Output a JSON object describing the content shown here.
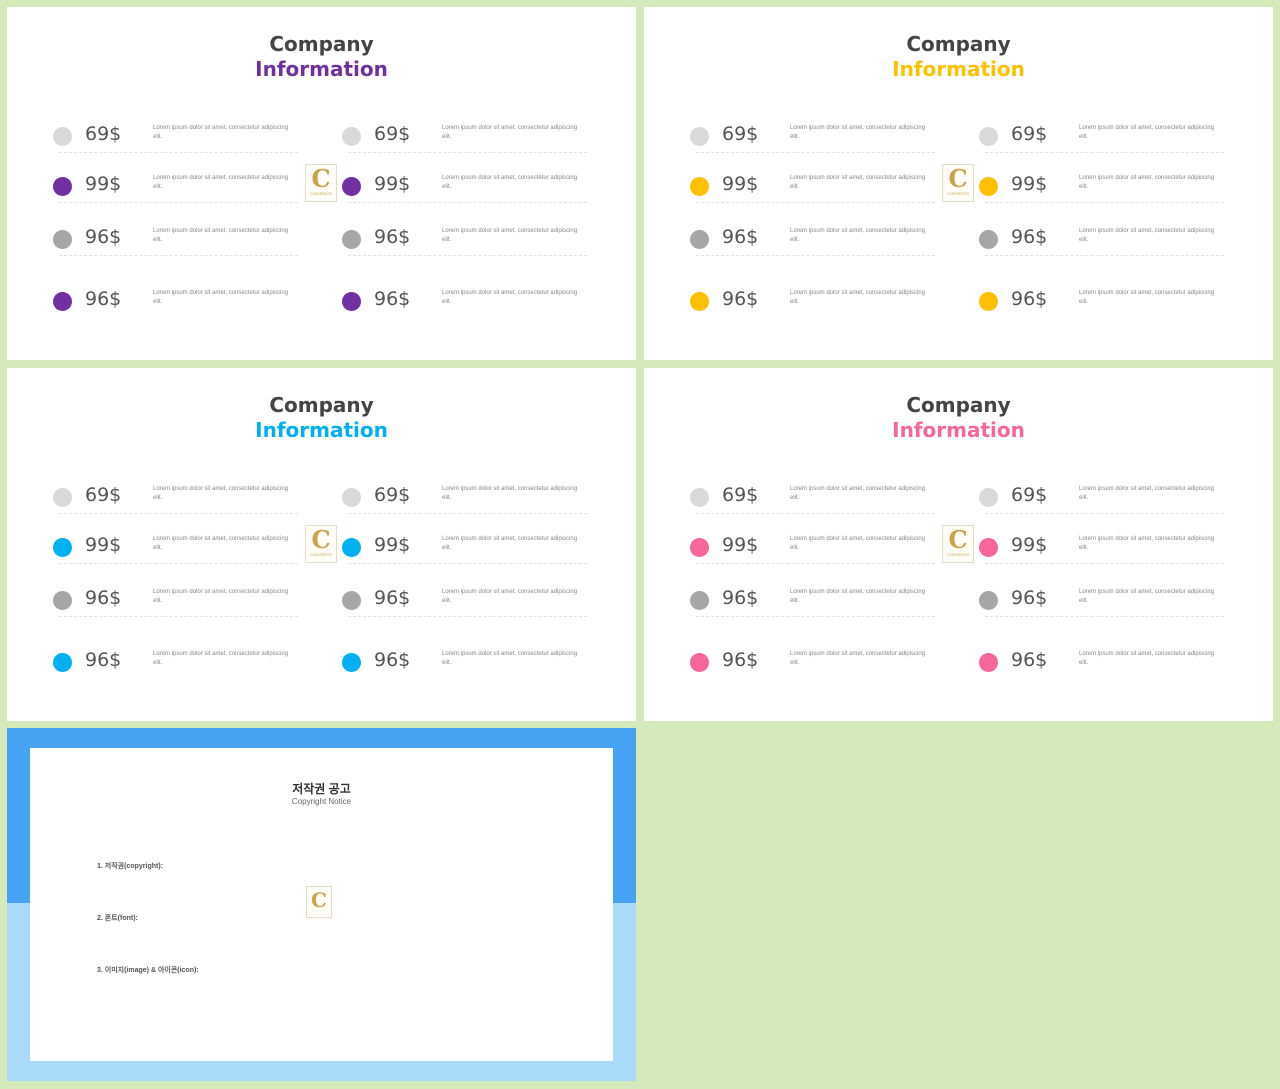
{
  "slides": [
    {
      "title_line1": "Company",
      "title_line2": "Information",
      "accent": "#7030a0",
      "left": [
        {
          "price": "69$",
          "dot": "#d9d9d9",
          "desc": "Lorem ipsum dolor sit amet, consectetur adipiscing elit."
        },
        {
          "price": "99$",
          "dot": "#7030a0",
          "desc": "Lorem ipsum dolor sit amet, consectetur adipiscing elit."
        },
        {
          "price": "96$",
          "dot": "#a6a6a6",
          "desc": "Lorem ipsum dolor sit amet, consectetur adipiscing elit."
        },
        {
          "price": "96$",
          "dot": "#7030a0",
          "desc": "Lorem ipsum dolor sit amet, consectetur adipiscing elit."
        }
      ],
      "right": [
        {
          "price": "69$",
          "dot": "#d9d9d9",
          "desc": "Lorem ipsum dolor sit amet, consectetur adipiscing elit."
        },
        {
          "price": "99$",
          "dot": "#7030a0",
          "desc": "Lorem ipsum dolor sit amet, consectetur adipiscing elit."
        },
        {
          "price": "96$",
          "dot": "#a6a6a6",
          "desc": "Lorem ipsum dolor sit amet, consectetur adipiscing elit."
        },
        {
          "price": "96$",
          "dot": "#7030a0",
          "desc": "Lorem ipsum dolor sit amet, consectetur adipiscing elit."
        }
      ]
    },
    {
      "title_line1": "Company",
      "title_line2": "Information",
      "accent": "#ffc000",
      "left": [
        {
          "price": "69$",
          "dot": "#d9d9d9",
          "desc": "Lorem ipsum dolor sit amet, consectetur adipiscing elit."
        },
        {
          "price": "99$",
          "dot": "#ffc000",
          "desc": "Lorem ipsum dolor sit amet, consectetur adipiscing elit."
        },
        {
          "price": "96$",
          "dot": "#a6a6a6",
          "desc": "Lorem ipsum dolor sit amet, consectetur adipiscing elit."
        },
        {
          "price": "96$",
          "dot": "#ffc000",
          "desc": "Lorem ipsum dolor sit amet, consectetur adipiscing elit."
        }
      ],
      "right": [
        {
          "price": "69$",
          "dot": "#d9d9d9",
          "desc": "Lorem ipsum dolor sit amet, consectetur adipiscing elit."
        },
        {
          "price": "99$",
          "dot": "#ffc000",
          "desc": "Lorem ipsum dolor sit amet, consectetur adipiscing elit."
        },
        {
          "price": "96$",
          "dot": "#a6a6a6",
          "desc": "Lorem ipsum dolor sit amet, consectetur adipiscing elit."
        },
        {
          "price": "96$",
          "dot": "#ffc000",
          "desc": "Lorem ipsum dolor sit amet, consectetur adipiscing elit."
        }
      ]
    },
    {
      "title_line1": "Company",
      "title_line2": "Information",
      "accent": "#00b0f0",
      "left": [
        {
          "price": "69$",
          "dot": "#d9d9d9",
          "desc": "Lorem ipsum dolor sit amet, consectetur adipiscing elit."
        },
        {
          "price": "99$",
          "dot": "#00b0f0",
          "desc": "Lorem ipsum dolor sit amet, consectetur adipiscing elit."
        },
        {
          "price": "96$",
          "dot": "#a6a6a6",
          "desc": "Lorem ipsum dolor sit amet, consectetur adipiscing elit."
        },
        {
          "price": "96$",
          "dot": "#00b0f0",
          "desc": "Lorem ipsum dolor sit amet, consectetur adipiscing elit."
        }
      ],
      "right": [
        {
          "price": "69$",
          "dot": "#d9d9d9",
          "desc": "Lorem ipsum dolor sit amet, consectetur adipiscing elit."
        },
        {
          "price": "99$",
          "dot": "#00b0f0",
          "desc": "Lorem ipsum dolor sit amet, consectetur adipiscing elit."
        },
        {
          "price": "96$",
          "dot": "#a6a6a6",
          "desc": "Lorem ipsum dolor sit amet, consectetur adipiscing elit."
        },
        {
          "price": "96$",
          "dot": "#00b0f0",
          "desc": "Lorem ipsum dolor sit amet, consectetur adipiscing elit."
        }
      ]
    },
    {
      "title_line1": "Company",
      "title_line2": "Information",
      "accent": "#f5679c",
      "left": [
        {
          "price": "69$",
          "dot": "#d9d9d9",
          "desc": "Lorem ipsum dolor sit amet, consectetur adipiscing elit."
        },
        {
          "price": "99$",
          "dot": "#f5679c",
          "desc": "Lorem ipsum dolor sit amet, consectetur adipiscing elit."
        },
        {
          "price": "96$",
          "dot": "#a6a6a6",
          "desc": "Lorem ipsum dolor sit amet, consectetur adipiscing elit."
        },
        {
          "price": "96$",
          "dot": "#f5679c",
          "desc": "Lorem ipsum dolor sit amet, consectetur adipiscing elit."
        }
      ],
      "right": [
        {
          "price": "69$",
          "dot": "#d9d9d9",
          "desc": "Lorem ipsum dolor sit amet, consectetur adipiscing elit."
        },
        {
          "price": "99$",
          "dot": "#f5679c",
          "desc": "Lorem ipsum dolor sit amet, consectetur adipiscing elit."
        },
        {
          "price": "96$",
          "dot": "#a6a6a6",
          "desc": "Lorem ipsum dolor sit amet, consectetur adipiscing elit."
        },
        {
          "price": "96$",
          "dot": "#f5679c",
          "desc": "Lorem ipsum dolor sit amet, consectetur adipiscing elit."
        }
      ]
    }
  ],
  "logo": {
    "letter": "C",
    "text": "CONTENTS"
  },
  "copyright": {
    "title": "저작권 공고",
    "subtitle": "Copyright Notice",
    "p1": "",
    "p2_label": "1. 저작권(copyright):",
    "p2": "",
    "p3_label": "2. 폰트(font):",
    "p3": "",
    "p4_label": "3. 이미지(image) & 아이콘(icon):",
    "p4": "",
    "p5": "",
    "logo_letter": "C",
    "band_color": "#46a2f2",
    "bg_color": "#a9dbf9"
  }
}
